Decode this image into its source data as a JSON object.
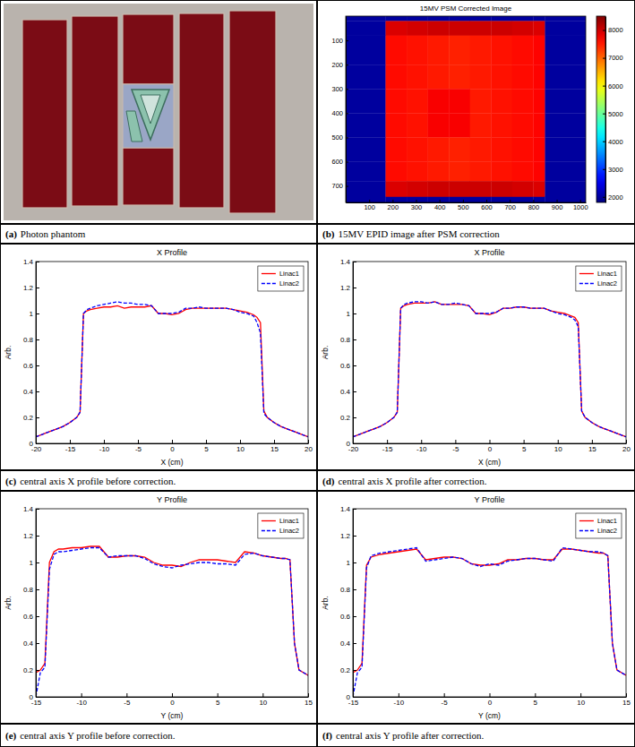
{
  "chart_data": [
    {
      "type": "photo",
      "caption": {
        "label": "(a)",
        "text": "Photon phantom"
      }
    },
    {
      "type": "heatmap",
      "title": "15MV PSM Corrected Image",
      "caption": {
        "label": "(b)",
        "text": "15MV EPID image after PSM correction"
      },
      "xlim": [
        0,
        1024
      ],
      "ylim": [
        768,
        0
      ],
      "xticks": [
        100,
        200,
        300,
        400,
        500,
        600,
        700,
        800,
        900,
        1000
      ],
      "yticks": [
        100,
        200,
        300,
        400,
        500,
        600,
        700
      ],
      "x_edges": [
        0,
        170,
        260,
        350,
        440,
        530,
        620,
        710,
        800,
        850,
        1024
      ],
      "y_edges": [
        0,
        20,
        80,
        200,
        300,
        400,
        500,
        600,
        680,
        745,
        768
      ],
      "cells": [
        [
          2000,
          2000,
          2000,
          2000,
          2000,
          2000,
          2000,
          2000,
          2000,
          2000
        ],
        [
          2000,
          7900,
          7950,
          8000,
          8000,
          8000,
          8000,
          7950,
          7900,
          2000
        ],
        [
          2000,
          7600,
          7550,
          7500,
          7450,
          7500,
          7550,
          7600,
          7650,
          2000
        ],
        [
          2000,
          7600,
          7550,
          7500,
          7450,
          7500,
          7550,
          7600,
          7650,
          2000
        ],
        [
          2000,
          7600,
          7550,
          7700,
          7700,
          7500,
          7550,
          7600,
          7650,
          2000
        ],
        [
          2000,
          7600,
          7550,
          7700,
          7700,
          7500,
          7550,
          7600,
          7650,
          2000
        ],
        [
          2000,
          7600,
          7550,
          7500,
          7450,
          7500,
          7550,
          7600,
          7650,
          2000
        ],
        [
          2000,
          7600,
          7550,
          7500,
          7450,
          7500,
          7550,
          7600,
          7650,
          2000
        ],
        [
          2000,
          7900,
          7950,
          8000,
          8000,
          8000,
          8000,
          7950,
          7900,
          2000
        ],
        [
          2000,
          2000,
          2000,
          2000,
          2000,
          2000,
          2000,
          2000,
          2000,
          2000
        ]
      ],
      "colorbar": {
        "range": [
          1800,
          8500
        ],
        "ticks": [
          2000,
          3000,
          4000,
          5000,
          6000,
          7000,
          8000
        ]
      }
    },
    {
      "type": "line",
      "title": "X Profile",
      "x_label": "X (cm)",
      "y_label": "Arb.",
      "caption": {
        "label": "(c)",
        "text": "central axis X profile before correction."
      },
      "xlim": [
        -20,
        20
      ],
      "ylim": [
        0,
        1.4
      ],
      "xticks": [
        -20,
        -15,
        -10,
        -5,
        0,
        5,
        10,
        15,
        20
      ],
      "yticks": [
        0,
        0.2,
        0.4,
        0.6,
        0.8,
        1,
        1.2,
        1.4
      ],
      "grid": false,
      "legend": "northeast",
      "x": [
        -20,
        -19,
        -18,
        -17,
        -16,
        -15,
        -14,
        -13.5,
        -13,
        -12.5,
        -12,
        -11,
        -10,
        -9,
        -8,
        -7,
        -6,
        -5,
        -4,
        -3,
        -2,
        -1,
        0,
        1,
        2,
        3,
        4,
        5,
        6,
        7,
        8,
        9,
        10,
        11,
        12,
        12.5,
        13,
        13.5,
        14,
        15,
        16,
        17,
        18,
        19,
        20
      ],
      "series": [
        {
          "name": "Linac1",
          "color": "#ff0000",
          "line_style": "solid",
          "values": [
            0.05,
            0.07,
            0.09,
            0.11,
            0.13,
            0.16,
            0.2,
            0.24,
            1.0,
            1.02,
            1.03,
            1.04,
            1.05,
            1.05,
            1.06,
            1.04,
            1.05,
            1.05,
            1.05,
            1.06,
            1.0,
            1.0,
            0.99,
            1.0,
            1.03,
            1.04,
            1.04,
            1.04,
            1.04,
            1.04,
            1.04,
            1.03,
            1.02,
            1.01,
            0.99,
            0.97,
            0.93,
            0.25,
            0.2,
            0.16,
            0.13,
            0.11,
            0.09,
            0.07,
            0.05
          ]
        },
        {
          "name": "Linac2",
          "color": "#0000ff",
          "line_style": "dashed",
          "values": [
            0.05,
            0.07,
            0.09,
            0.11,
            0.13,
            0.16,
            0.2,
            0.24,
            1.0,
            1.03,
            1.04,
            1.06,
            1.07,
            1.08,
            1.09,
            1.08,
            1.08,
            1.07,
            1.07,
            1.06,
            1.0,
            1.0,
            1.0,
            1.01,
            1.04,
            1.04,
            1.05,
            1.04,
            1.04,
            1.04,
            1.04,
            1.03,
            1.01,
            1.0,
            0.98,
            0.93,
            0.85,
            0.23,
            0.2,
            0.16,
            0.13,
            0.11,
            0.09,
            0.07,
            0.05
          ]
        }
      ]
    },
    {
      "type": "line",
      "title": "X Profile",
      "x_label": "X (cm)",
      "y_label": "Arb.",
      "caption": {
        "label": "(d)",
        "text": "central axis X profile after correction."
      },
      "xlim": [
        -20,
        20
      ],
      "ylim": [
        0,
        1.4
      ],
      "xticks": [
        -20,
        -15,
        -10,
        -5,
        0,
        5,
        10,
        15,
        20
      ],
      "yticks": [
        0,
        0.2,
        0.4,
        0.6,
        0.8,
        1,
        1.2,
        1.4
      ],
      "grid": false,
      "legend": "northeast",
      "x": [
        -20,
        -19,
        -18,
        -17,
        -16,
        -15,
        -14,
        -13.5,
        -13,
        -12.5,
        -12,
        -11,
        -10,
        -9,
        -8,
        -7,
        -6,
        -5,
        -4,
        -3,
        -2,
        -1,
        0,
        1,
        2,
        3,
        4,
        5,
        6,
        7,
        8,
        9,
        10,
        11,
        12,
        12.5,
        13,
        13.5,
        14,
        15,
        16,
        17,
        18,
        19,
        20
      ],
      "series": [
        {
          "name": "Linac1",
          "color": "#ff0000",
          "line_style": "solid",
          "values": [
            0.05,
            0.07,
            0.09,
            0.11,
            0.13,
            0.16,
            0.2,
            0.24,
            1.04,
            1.06,
            1.07,
            1.08,
            1.08,
            1.08,
            1.09,
            1.07,
            1.07,
            1.07,
            1.07,
            1.06,
            1.0,
            1.0,
            0.99,
            1.01,
            1.04,
            1.04,
            1.05,
            1.05,
            1.04,
            1.04,
            1.04,
            1.02,
            1.01,
            1.0,
            0.98,
            0.97,
            0.93,
            0.25,
            0.2,
            0.16,
            0.13,
            0.11,
            0.09,
            0.07,
            0.05
          ]
        },
        {
          "name": "Linac2",
          "color": "#0000ff",
          "line_style": "dashed",
          "values": [
            0.05,
            0.07,
            0.09,
            0.11,
            0.13,
            0.16,
            0.2,
            0.24,
            1.04,
            1.07,
            1.08,
            1.09,
            1.09,
            1.08,
            1.09,
            1.07,
            1.07,
            1.08,
            1.07,
            1.06,
            1.0,
            1.0,
            1.0,
            1.01,
            1.04,
            1.04,
            1.05,
            1.05,
            1.04,
            1.04,
            1.04,
            1.02,
            1.0,
            0.99,
            0.97,
            0.95,
            0.9,
            0.25,
            0.2,
            0.16,
            0.13,
            0.11,
            0.09,
            0.07,
            0.05
          ]
        }
      ]
    },
    {
      "type": "line",
      "title": "Y Profile",
      "x_label": "Y (cm)",
      "y_label": "Arb.",
      "caption": {
        "label": "(e)",
        "text": "central axis Y profile before correction."
      },
      "xlim": [
        -15,
        15
      ],
      "ylim": [
        0,
        1.4
      ],
      "xticks": [
        -15,
        -10,
        -5,
        0,
        5,
        10,
        15
      ],
      "yticks": [
        0,
        0.2,
        0.4,
        0.6,
        0.8,
        1,
        1.2,
        1.4
      ],
      "grid": false,
      "legend": "northeast",
      "x": [
        -15,
        -14.5,
        -14,
        -13.5,
        -13,
        -12.5,
        -12,
        -11,
        -10,
        -9,
        -8,
        -7,
        -6,
        -5,
        -4,
        -3,
        -2,
        -1,
        0,
        1,
        2,
        3,
        4,
        5,
        6,
        7,
        8,
        9,
        10,
        11,
        12,
        12.5,
        13,
        13.5,
        14,
        14.5,
        15
      ],
      "series": [
        {
          "name": "Linac1",
          "color": "#ff0000",
          "line_style": "solid",
          "values": [
            0.18,
            0.2,
            0.25,
            1.0,
            1.08,
            1.1,
            1.1,
            1.11,
            1.11,
            1.12,
            1.12,
            1.04,
            1.04,
            1.05,
            1.05,
            1.04,
            1.0,
            0.98,
            0.98,
            0.97,
            1.0,
            1.02,
            1.02,
            1.02,
            1.01,
            1.0,
            1.08,
            1.07,
            1.05,
            1.04,
            1.03,
            1.03,
            1.02,
            0.4,
            0.2,
            0.18,
            0.16
          ]
        },
        {
          "name": "Linac2",
          "color": "#0000ff",
          "line_style": "dashed",
          "values": [
            0.0,
            0.18,
            0.22,
            0.95,
            1.06,
            1.08,
            1.08,
            1.09,
            1.1,
            1.11,
            1.11,
            1.04,
            1.05,
            1.05,
            1.05,
            1.03,
            0.99,
            0.97,
            0.96,
            0.98,
            0.99,
            1.0,
            1.0,
            0.99,
            0.99,
            0.98,
            1.06,
            1.07,
            1.05,
            1.04,
            1.03,
            1.03,
            1.02,
            0.4,
            0.2,
            0.18,
            0.16
          ]
        }
      ]
    },
    {
      "type": "line",
      "title": "Y Profile",
      "x_label": "Y (cm)",
      "y_label": "Arb.",
      "caption": {
        "label": "(f)",
        "text": "central axis Y profile after correction."
      },
      "xlim": [
        -15,
        15
      ],
      "ylim": [
        0,
        1.4
      ],
      "xticks": [
        -15,
        -10,
        -5,
        0,
        5,
        10,
        15
      ],
      "yticks": [
        0,
        0.2,
        0.4,
        0.6,
        0.8,
        1,
        1.2,
        1.4
      ],
      "grid": false,
      "legend": "northeast",
      "x": [
        -15,
        -14.5,
        -14,
        -13.5,
        -13,
        -12.5,
        -12,
        -11,
        -10,
        -9,
        -8,
        -7,
        -6,
        -5,
        -4,
        -3,
        -2,
        -1,
        0,
        1,
        2,
        3,
        4,
        5,
        6,
        7,
        8,
        9,
        10,
        11,
        12,
        12.5,
        13,
        13.5,
        14,
        14.5,
        15
      ],
      "series": [
        {
          "name": "Linac1",
          "color": "#ff0000",
          "line_style": "solid",
          "values": [
            0.18,
            0.2,
            0.25,
            0.98,
            1.04,
            1.05,
            1.06,
            1.07,
            1.08,
            1.09,
            1.1,
            1.02,
            1.03,
            1.04,
            1.04,
            1.03,
            0.99,
            0.98,
            0.98,
            0.99,
            1.02,
            1.02,
            1.03,
            1.03,
            1.02,
            1.02,
            1.1,
            1.1,
            1.09,
            1.08,
            1.07,
            1.07,
            1.05,
            0.4,
            0.2,
            0.18,
            0.16
          ]
        },
        {
          "name": "Linac2",
          "color": "#0000ff",
          "line_style": "dashed",
          "values": [
            0.0,
            0.18,
            0.22,
            0.96,
            1.05,
            1.06,
            1.07,
            1.08,
            1.09,
            1.1,
            1.11,
            1.01,
            1.02,
            1.03,
            1.04,
            1.03,
            0.99,
            0.97,
            0.99,
            0.98,
            1.01,
            1.02,
            1.03,
            1.03,
            1.02,
            1.01,
            1.11,
            1.1,
            1.09,
            1.08,
            1.08,
            1.07,
            1.05,
            0.4,
            0.2,
            0.18,
            0.16
          ]
        }
      ]
    }
  ]
}
